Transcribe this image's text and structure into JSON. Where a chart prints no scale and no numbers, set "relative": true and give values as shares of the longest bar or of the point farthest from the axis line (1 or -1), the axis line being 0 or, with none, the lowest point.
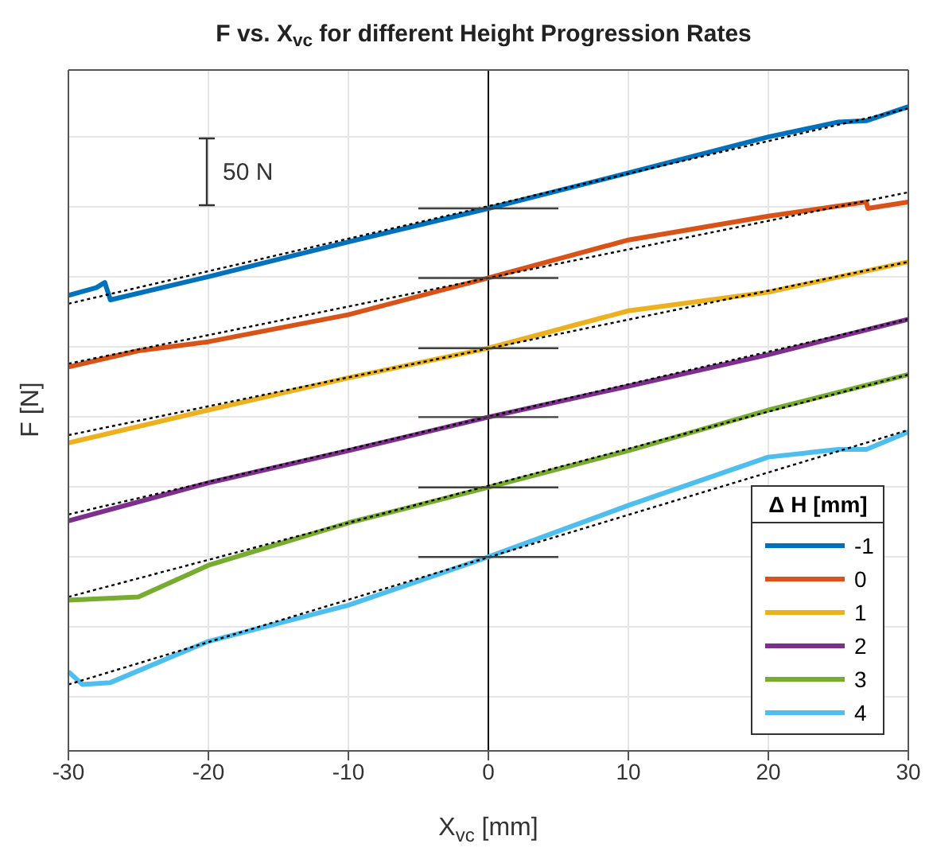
{
  "chart_data": {
    "type": "line",
    "title": "F vs. X$_{vc}$ for different Height Progression Rates",
    "xlabel": "X$_{vc}$ [mm]",
    "ylabel": "F [N]",
    "legend_title": "Δ H [mm]",
    "relative": true,
    "annotations": [
      "50 N"
    ],
    "xlim": [
      -30,
      30
    ],
    "xticks": [
      -30,
      -20,
      -10,
      0,
      10,
      20,
      30
    ],
    "grid": true,
    "legend": "bottom right",
    "line_style": "solid",
    "marker": "none",
    "ref_lines": [
      {
        "axis": "x",
        "value": 0,
        "color": "#000000"
      }
    ],
    "series": [
      {
        "name": "-1",
        "color": "#0072bd",
        "x": [
          -30,
          -28,
          -27.4,
          -27,
          -20,
          -10,
          0,
          10,
          20,
          25,
          27,
          30
        ],
        "values": [
          0.707,
          0.719,
          0.727,
          0.7,
          0.736,
          0.79,
          0.842,
          0.897,
          0.953,
          0.976,
          0.978,
          1
        ]
      },
      {
        "name": "0",
        "color": "#d95319",
        "x": [
          -30,
          -25,
          -20,
          -10,
          0,
          10,
          20,
          27,
          27.1,
          30
        ],
        "values": [
          0.596,
          0.621,
          0.635,
          0.677,
          0.734,
          0.793,
          0.83,
          0.852,
          0.842,
          0.852
        ]
      },
      {
        "name": "1",
        "color": "#edb120",
        "x": [
          -30,
          -20,
          -10,
          0,
          10,
          20,
          30
        ],
        "values": [
          0.478,
          0.529,
          0.579,
          0.625,
          0.683,
          0.712,
          0.759
        ]
      },
      {
        "name": "2",
        "color": "#7e2f8e",
        "x": [
          -30,
          -20,
          -10,
          0,
          10,
          20,
          30
        ],
        "values": [
          0.357,
          0.416,
          0.466,
          0.518,
          0.566,
          0.615,
          0.67
        ]
      },
      {
        "name": "3",
        "color": "#77ac30",
        "x": [
          -30,
          -25,
          -20,
          -10,
          0,
          10,
          20,
          30
        ],
        "values": [
          0.234,
          0.239,
          0.288,
          0.354,
          0.409,
          0.466,
          0.529,
          0.584
        ]
      },
      {
        "name": "4",
        "color": "#4dbeee",
        "x": [
          -30,
          -29,
          -27,
          -20,
          -10,
          0,
          10,
          20,
          25,
          27,
          30
        ],
        "values": [
          0.123,
          0.103,
          0.106,
          0.17,
          0.226,
          0.301,
          0.381,
          0.456,
          0.468,
          0.468,
          0.495
        ]
      },
      {
        "color": "#000000",
        "line_style": "dotted",
        "x": [
          -30,
          30
        ],
        "values": [
          0.694,
          0.997
        ]
      },
      {
        "color": "#000000",
        "line_style": "dotted",
        "x": [
          -30,
          30
        ],
        "values": [
          0.601,
          0.867
        ]
      },
      {
        "color": "#000000",
        "line_style": "dotted",
        "x": [
          -30,
          30
        ],
        "values": [
          0.49,
          0.759
        ]
      },
      {
        "color": "#000000",
        "line_style": "dotted",
        "x": [
          -30,
          30
        ],
        "values": [
          0.367,
          0.67
        ]
      },
      {
        "color": "#000000",
        "line_style": "dotted",
        "x": [
          -30,
          30
        ],
        "values": [
          0.239,
          0.584
        ]
      },
      {
        "color": "#000000",
        "line_style": "dotted",
        "x": [
          -30,
          30
        ],
        "values": [
          0.103,
          0.498
        ]
      },
      {
        "color": "#404040",
        "x": [
          -5,
          5
        ],
        "values": [
          0.842,
          0.842
        ]
      },
      {
        "color": "#404040",
        "x": [
          -5,
          5
        ],
        "values": [
          0.734,
          0.734
        ]
      },
      {
        "color": "#404040",
        "x": [
          -5,
          5
        ],
        "values": [
          0.625,
          0.625
        ]
      },
      {
        "color": "#404040",
        "x": [
          -5,
          5
        ],
        "values": [
          0.518,
          0.518
        ]
      },
      {
        "color": "#404040",
        "x": [
          -5,
          5
        ],
        "values": [
          0.409,
          0.409
        ]
      },
      {
        "color": "#404040",
        "x": [
          -5,
          5
        ],
        "values": [
          0.301,
          0.301
        ]
      }
    ]
  }
}
